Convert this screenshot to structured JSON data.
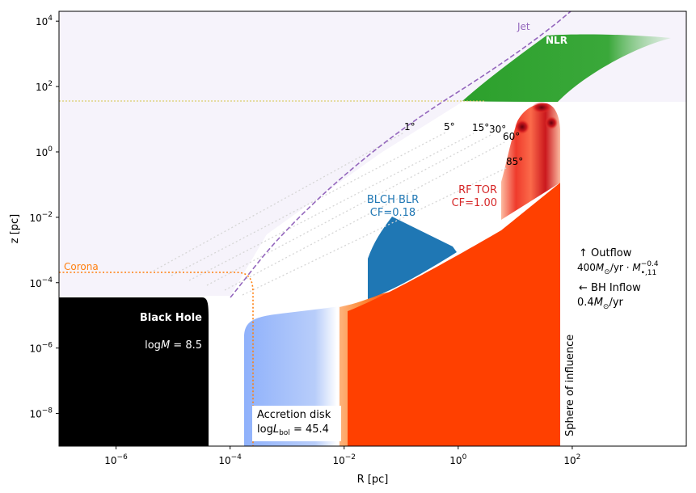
{
  "axes": {
    "xlabel": "R [pc]",
    "ylabel": "z [pc]",
    "x_ticks": [
      {
        "base": "10",
        "exp": "−6",
        "value": 1e-06
      },
      {
        "base": "10",
        "exp": "−4",
        "value": 0.0001
      },
      {
        "base": "10",
        "exp": "−2",
        "value": 0.01
      },
      {
        "base": "10",
        "exp": "0",
        "value": 1
      },
      {
        "base": "10",
        "exp": "2",
        "value": 100
      }
    ],
    "y_ticks": [
      {
        "base": "10",
        "exp": "4",
        "value": 10000.0
      },
      {
        "base": "10",
        "exp": "2",
        "value": 100
      },
      {
        "base": "10",
        "exp": "0",
        "value": 1
      },
      {
        "base": "10",
        "exp": "−2",
        "value": 0.01
      },
      {
        "base": "10",
        "exp": "−4",
        "value": 0.0001
      },
      {
        "base": "10",
        "exp": "−6",
        "value": 1e-06
      },
      {
        "base": "10",
        "exp": "−8",
        "value": 1e-08
      }
    ],
    "x_range": [
      1e-07,
      10000.0
    ],
    "y_range": [
      1e-09,
      20000.0
    ],
    "x_scale": "log",
    "y_scale": "log"
  },
  "labels": {
    "jet": "Jet",
    "nlr": "NLR",
    "corona": "Corona",
    "black_hole": "Black Hole",
    "bh_mass_prefix": "log",
    "bh_mass_var": "M",
    "bh_mass_value": " = 8.5",
    "blr_title": "BLCH BLR",
    "blr_cf": "CF=0.18",
    "tor_title": "RF TOR",
    "tor_cf": "CF=1.00",
    "angles": [
      "1°",
      "5°",
      "15°",
      "30°",
      "60°",
      "85°"
    ],
    "outflow_title": "↑  Outflow",
    "outflow_rate_num": "400",
    "outflow_rate_unit": "/yr · ",
    "outflow_exp": "−0.4",
    "outflow_sub": "•,11",
    "inflow_title": "←  BH Inflow",
    "inflow_rate": "0.4",
    "inflow_unit": "/yr",
    "disk_title": "Accretion disk",
    "disk_lum_prefix": "log",
    "disk_lum_var": "L",
    "disk_lum_sub": "bol",
    "disk_lum_value": " = 45.4",
    "sphere": "Sphere of influence"
  },
  "colors": {
    "background_region": "#f6f3fb",
    "jet": "#9467bd",
    "nlr": "#2ca02c",
    "corona": "#ff7f0e",
    "black_hole": "#000000",
    "blr": "#1f77b4",
    "tor": "#d62728",
    "torus_fill": "#ff4000",
    "disk_blue": "#8fb1fb",
    "line_guide": "#cccccc",
    "hline": "#d4c44a"
  }
}
